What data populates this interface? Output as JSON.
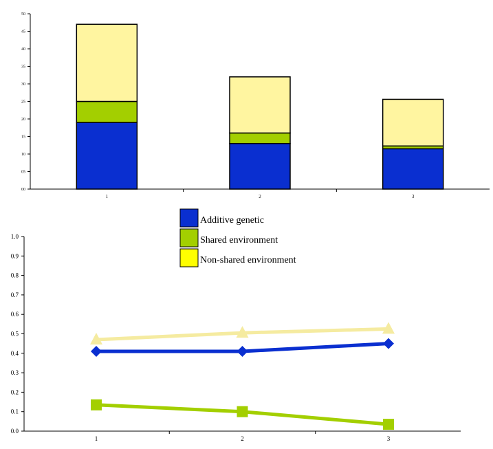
{
  "chart_data": [
    {
      "type": "bar",
      "stacked": true,
      "categories": [
        "1",
        "2",
        "3"
      ],
      "series": [
        {
          "name": "Additive genetic",
          "values": [
            19,
            13,
            11.5
          ],
          "color": "#0a2fd0"
        },
        {
          "name": "Shared environment",
          "values": [
            6,
            3,
            0.8
          ],
          "color": "#a3cf00"
        },
        {
          "name": "Non-shared environment",
          "values": [
            22,
            16,
            13.3
          ],
          "color": "#fff5a0"
        }
      ],
      "ylim": [
        0,
        50
      ],
      "y_ticks": [
        "00",
        "05",
        "10",
        "15",
        "20",
        "25",
        "30",
        "35",
        "40",
        "45",
        "50"
      ],
      "grid": false
    },
    {
      "type": "line",
      "x": [
        "1",
        "2",
        "3"
      ],
      "series": [
        {
          "name": "Additive genetic",
          "values": [
            0.41,
            0.41,
            0.45
          ],
          "color": "#0a2fd0",
          "marker": "diamond"
        },
        {
          "name": "Shared environment",
          "values": [
            0.135,
            0.1,
            0.035
          ],
          "color": "#a3cf00",
          "marker": "square"
        },
        {
          "name": "Non-shared environment",
          "values": [
            0.47,
            0.505,
            0.525
          ],
          "color": "#f5eba0",
          "marker": "triangle"
        }
      ],
      "ylim": [
        0,
        1
      ],
      "y_ticks": [
        "0.0",
        "0.1",
        "0.2",
        "0.3",
        "0.4",
        "0.5",
        "0.6",
        "0.7",
        "0.8",
        "0.9",
        "1.0"
      ],
      "grid": false
    }
  ],
  "legend": {
    "placement": "center",
    "entries": [
      {
        "label": "Additive genetic",
        "color": "#0a2fd0"
      },
      {
        "label": "Shared environment",
        "color": "#a3cf00"
      },
      {
        "label": "Non-shared environment",
        "color": "#ffff00"
      }
    ]
  }
}
